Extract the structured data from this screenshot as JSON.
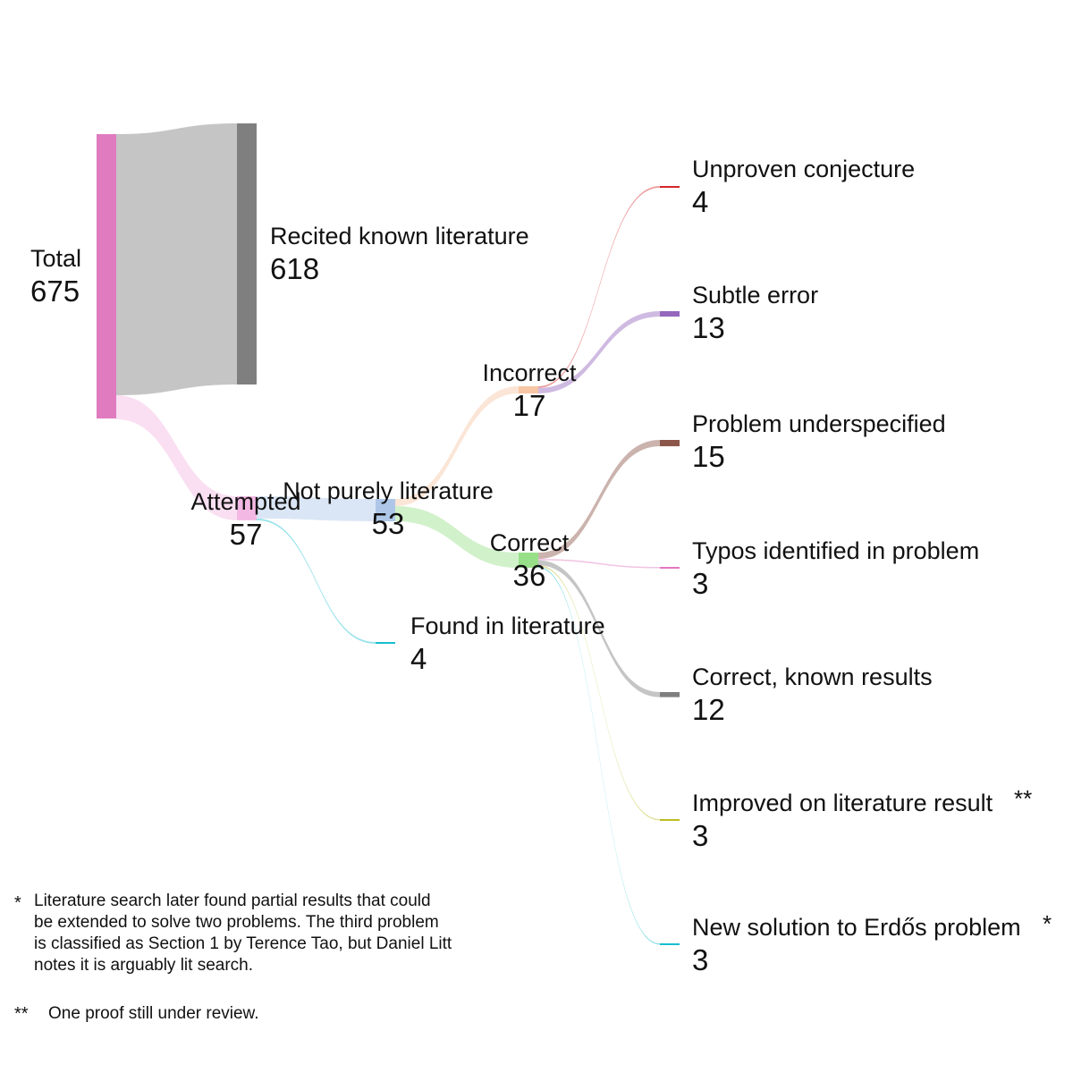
{
  "chart_data": {
    "type": "sankey",
    "nodes": [
      {
        "id": "total",
        "name": "Total",
        "value": 675,
        "color": "#e07bc0"
      },
      {
        "id": "recited",
        "name": "Recited known literature",
        "value": 618,
        "color": "#7f7f7f"
      },
      {
        "id": "attempted",
        "name": "Attempted",
        "value": 57,
        "color": "#f3b8e3"
      },
      {
        "id": "notpurely",
        "name": "Not purely literature",
        "value": 53,
        "color": "#aec7e8"
      },
      {
        "id": "found",
        "name": "Found in literature",
        "value": 4,
        "color": "#17becf"
      },
      {
        "id": "incorrect",
        "name": "Incorrect",
        "value": 17,
        "color": "#f7c6a5"
      },
      {
        "id": "correct",
        "name": "Correct",
        "value": 36,
        "color": "#98df8a"
      },
      {
        "id": "unproven",
        "name": "Unproven conjecture",
        "value": 4,
        "color": "#d62728"
      },
      {
        "id": "subtle",
        "name": "Subtle error",
        "value": 13,
        "color": "#9467bd"
      },
      {
        "id": "underspec",
        "name": "Problem underspecified",
        "value": 15,
        "color": "#8c564b"
      },
      {
        "id": "typos",
        "name": "Typos identified in problem",
        "value": 3,
        "color": "#e377c2"
      },
      {
        "id": "known",
        "name": "Correct, known results",
        "value": 12,
        "color": "#7f7f7f"
      },
      {
        "id": "improved",
        "name": "Improved on literature result",
        "value": 3,
        "color": "#bcbd22"
      },
      {
        "id": "newsol",
        "name": "New solution to Erdős problem",
        "value": 3,
        "color": "#17becf"
      }
    ],
    "links": [
      {
        "source": "total",
        "target": "recited",
        "value": 618
      },
      {
        "source": "total",
        "target": "attempted",
        "value": 57
      },
      {
        "source": "attempted",
        "target": "notpurely",
        "value": 53
      },
      {
        "source": "attempted",
        "target": "found",
        "value": 4
      },
      {
        "source": "notpurely",
        "target": "incorrect",
        "value": 17
      },
      {
        "source": "notpurely",
        "target": "correct",
        "value": 36
      },
      {
        "source": "incorrect",
        "target": "unproven",
        "value": 4
      },
      {
        "source": "incorrect",
        "target": "subtle",
        "value": 13
      },
      {
        "source": "correct",
        "target": "underspec",
        "value": 15
      },
      {
        "source": "correct",
        "target": "typos",
        "value": 3
      },
      {
        "source": "correct",
        "target": "known",
        "value": 12
      },
      {
        "source": "correct",
        "target": "improved",
        "value": 3
      },
      {
        "source": "correct",
        "target": "newsol",
        "value": 3
      }
    ],
    "annotations": {
      "improved": "**",
      "newsol": "*"
    }
  },
  "footnotes": {
    "single_mark": "*",
    "single_text_lines": [
      "Literature search later found partial results that could",
      "be extended to solve two problems. The third problem",
      "is classified as Section 1 by Terence Tao, but Daniel Litt",
      "notes it is arguably lit search."
    ],
    "double_mark": "**",
    "double_text": "One proof still under review."
  }
}
